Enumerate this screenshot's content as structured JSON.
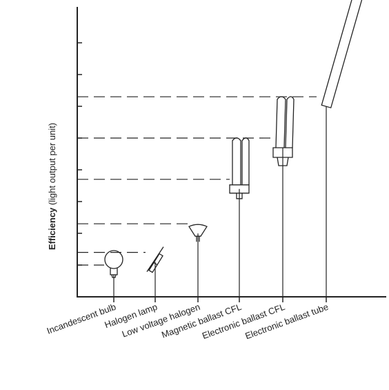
{
  "chart_data": {
    "type": "lamp-efficiency",
    "ylabel_bold": "Efficiency",
    "ylabel": "(light output per unit)",
    "categories": [
      "Incandescent bulb",
      "Halogen lamp",
      "Low voltage halogen",
      "Magnetic ballast CFL",
      "Electronic ballast CFL",
      "Electronic ballast tube"
    ],
    "values": [
      1.0,
      1.4,
      2.3,
      3.7,
      5.0,
      6.3
    ],
    "ylim": [
      0,
      9
    ],
    "yticks": [
      1,
      2,
      3,
      4,
      5,
      6,
      7,
      8
    ],
    "color": "#222222"
  }
}
